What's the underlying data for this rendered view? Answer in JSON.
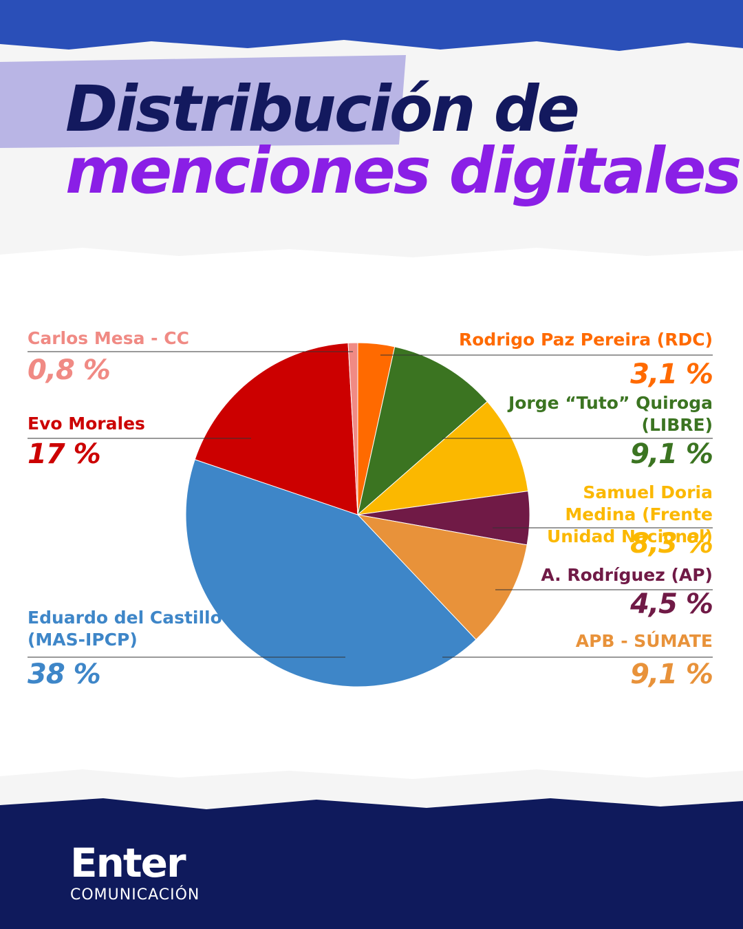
{
  "title_lines": [
    "Distribución de",
    "menciones digitales"
  ],
  "brand": {
    "name": "Enter",
    "tagline": "COMUNICACIÓN"
  },
  "chart_data": {
    "type": "pie",
    "categories": [
      "Rodrigo Paz Pereira (RDC)",
      "Jorge “Tuto” Quiroga (LIBRE)",
      "Samuel Doria Medina (Frente Unidad Nacional)",
      "A. Rodríguez (AP)",
      "APB - SÚMATE",
      "Eduardo del Castillo (MAS-IPCP)",
      "Evo Morales",
      "Carlos Mesa - CC"
    ],
    "values": [
      3.1,
      9.1,
      8.3,
      4.5,
      9.1,
      38,
      17,
      0.8
    ],
    "value_labels": [
      "3,1 %",
      "9,1 %",
      "8,3 %",
      "4,5 %",
      "9,1 %",
      "38 %",
      "17 %",
      "0,8 %"
    ],
    "colors": [
      "#ff6a00",
      "#3b7421",
      "#fbb800",
      "#701a46",
      "#e8923a",
      "#3e86c8",
      "#cc0000",
      "#f08a84"
    ]
  }
}
